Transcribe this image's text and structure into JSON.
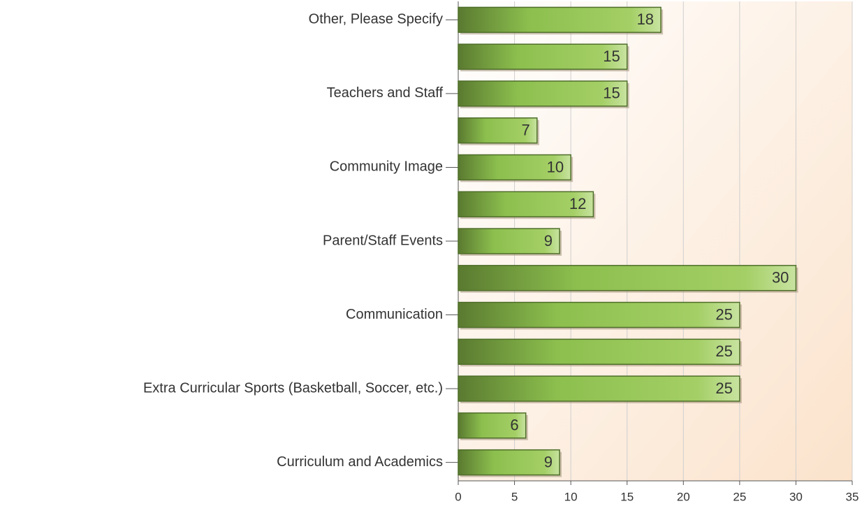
{
  "chart_data": {
    "type": "bar",
    "orientation": "horizontal",
    "categories": [
      "Other, Please Specify",
      null,
      "Teachers and Staff",
      null,
      "Community Image",
      null,
      "Parent/Staff Events",
      null,
      "Communication",
      null,
      "Extra Curricular Sports (Basketball, Soccer, etc.)",
      null,
      "Curriculum and Academics"
    ],
    "values": [
      18,
      15,
      15,
      7,
      10,
      12,
      9,
      30,
      25,
      25,
      25,
      6,
      9
    ],
    "color": "#8cbf4e",
    "xlim": [
      0,
      35
    ],
    "xticks": [
      0,
      5,
      10,
      15,
      20,
      25,
      30,
      35
    ],
    "grid": true
  }
}
